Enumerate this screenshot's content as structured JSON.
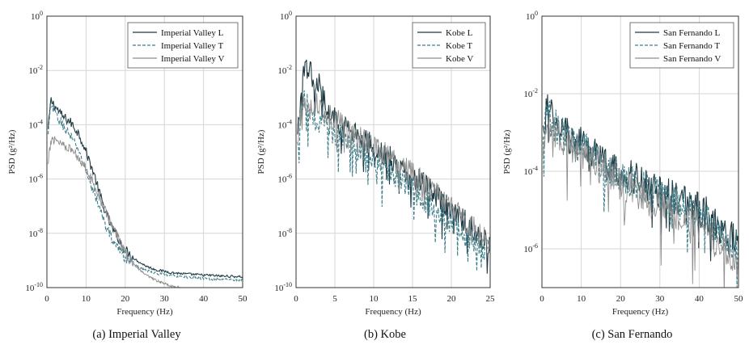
{
  "colors": {
    "L": "#1e3b44",
    "T": "#3f7f8a",
    "V": "#8e8e8e",
    "grid": "#d6d6d6",
    "axis": "#333333"
  },
  "chart_data": [
    {
      "type": "line",
      "caption": "(a) Imperial Valley",
      "xlabel": "Frequency (Hz)",
      "ylabel": "PSD (g²/Hz)",
      "xlim": [
        0,
        50
      ],
      "ylim_log10": [
        -10,
        0
      ],
      "y_scale": "log",
      "x_ticks": [
        0,
        10,
        20,
        30,
        40,
        50
      ],
      "y_tick_exponents": [
        0,
        -2,
        -4,
        -6,
        -8,
        -10
      ],
      "grid": true,
      "legend_position": "top-right",
      "series": [
        {
          "name": "Imperial Valley L",
          "style": "solid",
          "color_key": "L",
          "x": [
            0.3,
            1,
            2,
            3,
            4,
            5,
            6,
            7,
            8,
            9,
            10,
            11,
            12,
            13,
            14,
            15,
            16,
            17,
            18,
            19,
            20,
            22,
            24,
            26,
            28,
            30,
            32,
            34,
            36,
            38,
            40,
            42,
            44,
            46,
            48,
            50
          ],
          "log10_psd": [
            -4.2,
            -3.1,
            -3.3,
            -3.5,
            -3.7,
            -3.8,
            -3.9,
            -4.1,
            -4.3,
            -4.6,
            -5.0,
            -5.4,
            -5.8,
            -6.3,
            -6.8,
            -7.2,
            -7.6,
            -7.9,
            -8.1,
            -8.4,
            -8.6,
            -8.9,
            -9.1,
            -9.25,
            -9.35,
            -9.4,
            -9.45,
            -9.48,
            -9.5,
            -9.52,
            -9.54,
            -9.55,
            -9.57,
            -9.58,
            -9.59,
            -9.6
          ]
        },
        {
          "name": "Imperial Valley T",
          "style": "dashed",
          "color_key": "T",
          "x": [
            0.3,
            1,
            2,
            3,
            4,
            5,
            6,
            7,
            8,
            9,
            10,
            11,
            12,
            13,
            14,
            15,
            16,
            17,
            18,
            19,
            20,
            22,
            24,
            26,
            28,
            30,
            32,
            34,
            36,
            38,
            40,
            42,
            44,
            46,
            48,
            50
          ],
          "log10_psd": [
            -4.4,
            -3.3,
            -3.5,
            -3.8,
            -4.0,
            -4.2,
            -4.4,
            -4.7,
            -4.9,
            -5.3,
            -5.7,
            -6.1,
            -6.5,
            -6.9,
            -7.3,
            -7.7,
            -8.0,
            -8.3,
            -8.5,
            -8.7,
            -8.9,
            -9.1,
            -9.3,
            -9.4,
            -9.48,
            -9.52,
            -9.56,
            -9.6,
            -9.62,
            -9.64,
            -9.66,
            -9.68,
            -9.69,
            -9.7,
            -9.71,
            -9.72
          ]
        },
        {
          "name": "Imperial Valley V",
          "style": "solid",
          "color_key": "V",
          "x": [
            0.3,
            1,
            2,
            3,
            4,
            5,
            6,
            7,
            8,
            9,
            10,
            11,
            12,
            13,
            14,
            15,
            16,
            17,
            18,
            19,
            20,
            22,
            24,
            26,
            28,
            30,
            32,
            34
          ],
          "log10_psd": [
            -5.5,
            -4.6,
            -4.5,
            -4.6,
            -4.7,
            -4.8,
            -4.9,
            -5.0,
            -5.2,
            -5.4,
            -5.6,
            -5.9,
            -6.2,
            -6.5,
            -6.9,
            -7.2,
            -7.5,
            -7.8,
            -8.1,
            -8.4,
            -8.7,
            -9.1,
            -9.4,
            -9.6,
            -9.75,
            -9.85,
            -9.95,
            -10.0
          ]
        }
      ]
    },
    {
      "type": "line",
      "caption": "(b) Kobe",
      "xlabel": "Frequency (Hz)",
      "ylabel": "PSD (g²/Hz)",
      "xlim": [
        0,
        25
      ],
      "ylim_log10": [
        -10,
        0
      ],
      "y_scale": "log",
      "x_ticks": [
        0,
        5,
        10,
        15,
        20,
        25
      ],
      "y_tick_exponents": [
        0,
        -2,
        -4,
        -6,
        -8,
        -10
      ],
      "grid": true,
      "legend_position": "top-right",
      "series": [
        {
          "name": "Kobe L",
          "style": "solid",
          "color_key": "L",
          "x": [
            0.2,
            0.6,
            1,
            1.5,
            2,
            2.5,
            3,
            3.5,
            4,
            5,
            6,
            7,
            8,
            9,
            10,
            11,
            12,
            13,
            14,
            15,
            16,
            17,
            18,
            19,
            20,
            21,
            22,
            23,
            24,
            25
          ],
          "log10_psd": [
            -4.5,
            -3.0,
            -2.2,
            -1.9,
            -2.1,
            -2.4,
            -2.5,
            -3.0,
            -3.4,
            -3.8,
            -4.0,
            -4.2,
            -4.5,
            -4.6,
            -4.8,
            -5.0,
            -5.2,
            -5.5,
            -5.7,
            -5.9,
            -6.1,
            -6.3,
            -6.6,
            -6.9,
            -7.1,
            -7.4,
            -7.6,
            -7.9,
            -8.2,
            -8.4
          ]
        },
        {
          "name": "Kobe T",
          "style": "dashed",
          "color_key": "T",
          "x": [
            0.2,
            0.6,
            1,
            1.5,
            2,
            2.5,
            3,
            3.5,
            4,
            5,
            6,
            7,
            8,
            9,
            10,
            11,
            12,
            13,
            14,
            15,
            16,
            17,
            18,
            19,
            20,
            21,
            22,
            23,
            24,
            25
          ],
          "log10_psd": [
            -4.8,
            -3.5,
            -3.1,
            -3.3,
            -3.6,
            -3.8,
            -3.9,
            -4.0,
            -4.1,
            -4.3,
            -4.5,
            -4.7,
            -4.9,
            -5.1,
            -5.3,
            -5.5,
            -5.7,
            -5.9,
            -6.2,
            -6.4,
            -6.7,
            -6.9,
            -7.2,
            -7.4,
            -7.6,
            -7.9,
            -8.1,
            -8.3,
            -8.5,
            -8.6
          ]
        },
        {
          "name": "Kobe V",
          "style": "solid",
          "color_key": "V",
          "x": [
            0.2,
            0.6,
            1,
            1.5,
            2,
            2.5,
            3,
            3.5,
            4,
            5,
            6,
            7,
            8,
            9,
            10,
            11,
            12,
            13,
            14,
            15,
            16,
            17,
            18,
            19,
            20,
            21,
            22,
            23,
            24,
            25
          ],
          "log10_psd": [
            -4.8,
            -3.6,
            -3.3,
            -3.5,
            -3.4,
            -3.1,
            -3.2,
            -3.4,
            -3.6,
            -3.8,
            -4.0,
            -4.2,
            -4.4,
            -4.6,
            -4.8,
            -5.0,
            -5.2,
            -5.4,
            -5.6,
            -5.8,
            -6.0,
            -6.3,
            -6.5,
            -6.8,
            -7.0,
            -7.3,
            -7.6,
            -7.8,
            -8.1,
            -8.3
          ]
        }
      ]
    },
    {
      "type": "line",
      "caption": "(c) San Fernando",
      "xlabel": "Frequency (Hz)",
      "ylabel": "PSD (g²/Hz)",
      "xlim": [
        0,
        50
      ],
      "ylim_log10": [
        -7,
        0
      ],
      "y_scale": "log",
      "x_ticks": [
        0,
        10,
        20,
        30,
        40,
        50
      ],
      "y_tick_exponents": [
        0,
        -2,
        -4,
        -6
      ],
      "grid": true,
      "legend_position": "top-right",
      "series": [
        {
          "name": "San Fernando L",
          "style": "solid",
          "color_key": "L",
          "x": [
            0.3,
            1,
            2,
            3,
            4,
            5,
            6,
            7,
            8,
            10,
            12,
            14,
            16,
            18,
            20,
            22,
            24,
            26,
            28,
            30,
            32,
            34,
            36,
            38,
            40,
            42,
            44,
            46,
            48,
            50
          ],
          "log10_psd": [
            -3.0,
            -2.5,
            -2.4,
            -2.6,
            -2.8,
            -2.9,
            -3.0,
            -3.1,
            -3.2,
            -3.3,
            -3.4,
            -3.6,
            -3.8,
            -3.9,
            -4.0,
            -4.1,
            -4.2,
            -4.3,
            -4.4,
            -4.5,
            -4.6,
            -4.7,
            -4.8,
            -4.9,
            -5.0,
            -5.1,
            -5.3,
            -5.5,
            -5.7,
            -5.9
          ]
        },
        {
          "name": "San Fernando T",
          "style": "dashed",
          "color_key": "T",
          "x": [
            0.3,
            1,
            2,
            3,
            4,
            5,
            6,
            7,
            8,
            10,
            12,
            14,
            16,
            18,
            20,
            22,
            24,
            26,
            28,
            30,
            32,
            34,
            36,
            38,
            40,
            42,
            44,
            46,
            48,
            50
          ],
          "log10_psd": [
            -3.3,
            -2.7,
            -2.6,
            -2.8,
            -2.9,
            -3.0,
            -3.1,
            -3.2,
            -3.3,
            -3.4,
            -3.5,
            -3.7,
            -3.9,
            -4.0,
            -4.1,
            -4.2,
            -4.3,
            -4.4,
            -4.5,
            -4.6,
            -4.7,
            -4.8,
            -4.9,
            -5.0,
            -5.1,
            -5.2,
            -5.4,
            -5.6,
            -5.8,
            -6.0
          ]
        },
        {
          "name": "San Fernando V",
          "style": "solid",
          "color_key": "V",
          "x": [
            0.3,
            1,
            2,
            3,
            4,
            5,
            6,
            7,
            8,
            10,
            12,
            14,
            16,
            18,
            20,
            22,
            24,
            26,
            28,
            30,
            32,
            34,
            36,
            38,
            40,
            42,
            44,
            46,
            48,
            50
          ],
          "log10_psd": [
            -3.8,
            -3.0,
            -2.8,
            -2.9,
            -3.0,
            -3.1,
            -3.2,
            -3.3,
            -3.4,
            -3.5,
            -3.7,
            -3.8,
            -4.0,
            -4.1,
            -4.3,
            -4.4,
            -4.5,
            -4.6,
            -4.8,
            -4.9,
            -5.0,
            -5.1,
            -5.2,
            -5.3,
            -5.4,
            -5.6,
            -5.8,
            -6.0,
            -6.2,
            -6.4
          ]
        }
      ]
    }
  ]
}
